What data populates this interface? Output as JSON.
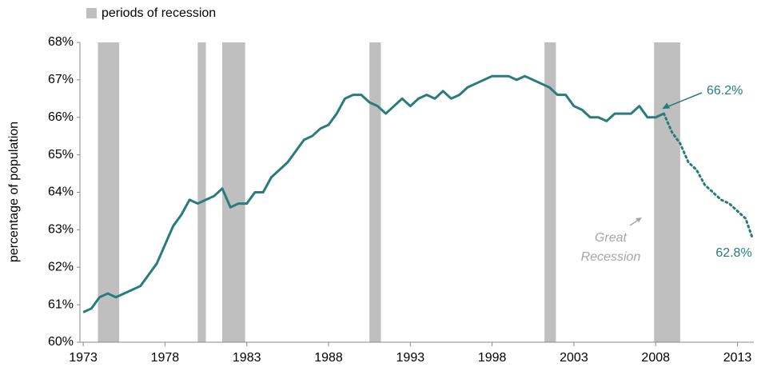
{
  "chart_data": {
    "type": "line",
    "y_label": "percentage of population",
    "recession_label": "periods of recession",
    "recession_color": "#bfbfbf",
    "recessions": [
      [
        1973.9,
        1975.2
      ],
      [
        1980.0,
        1980.5
      ],
      [
        1981.5,
        1982.9
      ],
      [
        1990.5,
        1991.2
      ],
      [
        2001.2,
        2001.9
      ],
      [
        2007.9,
        2009.5
      ]
    ],
    "series": [
      {
        "color": "#2a7b7c",
        "style": "solid",
        "x": [
          1973.0,
          1973.5,
          1974.0,
          1974.5,
          1975.0,
          1975.5,
          1976.0,
          1976.5,
          1977.0,
          1977.5,
          1978.0,
          1978.5,
          1979.0,
          1979.5,
          1980.0,
          1980.5,
          1981.0,
          1981.5,
          1982.0,
          1982.5,
          1983.0,
          1983.5,
          1984.0,
          1984.5,
          1985.0,
          1985.5,
          1986.0,
          1986.5,
          1987.0,
          1987.5,
          1988.0,
          1988.5,
          1989.0,
          1989.5,
          1990.0,
          1990.5,
          1991.0,
          1991.5,
          1992.0,
          1992.5,
          1993.0,
          1993.5,
          1994.0,
          1994.5,
          1995.0,
          1995.5,
          1996.0,
          1996.5,
          1997.0,
          1997.5,
          1998.0,
          1998.5,
          1999.0,
          1999.5,
          2000.0,
          2000.5,
          2001.0,
          2001.5,
          2002.0,
          2002.5,
          2003.0,
          2003.5,
          2004.0,
          2004.5,
          2005.0,
          2005.5,
          2006.0,
          2006.5,
          2007.0,
          2007.5,
          2008.0,
          2008.5
        ],
        "values": [
          60.8,
          60.9,
          61.2,
          61.3,
          61.2,
          61.3,
          61.4,
          61.5,
          61.8,
          62.1,
          62.6,
          63.1,
          63.4,
          63.8,
          63.7,
          63.8,
          63.9,
          64.1,
          63.6,
          63.7,
          63.7,
          64.0,
          64.0,
          64.4,
          64.6,
          64.8,
          65.1,
          65.4,
          65.5,
          65.7,
          65.8,
          66.1,
          66.5,
          66.6,
          66.6,
          66.4,
          66.3,
          66.1,
          66.3,
          66.5,
          66.3,
          66.5,
          66.6,
          66.5,
          66.7,
          66.5,
          66.6,
          66.8,
          66.9,
          67.0,
          67.1,
          67.1,
          67.1,
          67.0,
          67.1,
          67.0,
          66.9,
          66.8,
          66.6,
          66.6,
          66.3,
          66.2,
          66.0,
          66.0,
          65.9,
          66.1,
          66.1,
          66.1,
          66.3,
          66.0,
          66.0,
          66.1
        ]
      },
      {
        "color": "#2a7b7c",
        "style": "dotted",
        "x": [
          2008.5,
          2009.0,
          2009.5,
          2010.0,
          2010.5,
          2011.0,
          2011.5,
          2012.0,
          2012.5,
          2013.0,
          2013.5,
          2013.9
        ],
        "values": [
          66.1,
          65.6,
          65.3,
          64.8,
          64.6,
          64.2,
          64.0,
          63.8,
          63.7,
          63.5,
          63.3,
          62.8
        ]
      }
    ],
    "annotations": [
      {
        "text": "66.2%",
        "x": 2008.2,
        "y": 66.2,
        "color": "#2a7b7c"
      },
      {
        "text": "62.8%",
        "x": 2013.9,
        "y": 62.8,
        "color": "#2a7b7c"
      },
      {
        "text": "Great Recession",
        "color": "#a6a6a6"
      }
    ],
    "xlim": [
      1972.8,
      2014
    ],
    "xticks": [
      1973,
      1978,
      1983,
      1988,
      1993,
      1998,
      2003,
      2008,
      2013
    ],
    "ylim": [
      60,
      68
    ],
    "yticks": [
      {
        "value": 60,
        "label": "60%"
      },
      {
        "value": 61,
        "label": "61%"
      },
      {
        "value": 62,
        "label": "62%"
      },
      {
        "value": 63,
        "label": "63%"
      },
      {
        "value": 64,
        "label": "64%"
      },
      {
        "value": 65,
        "label": "65%"
      },
      {
        "value": 66,
        "label": "66%"
      },
      {
        "value": 67,
        "label": "67%"
      },
      {
        "value": 68,
        "label": "68%"
      }
    ]
  }
}
